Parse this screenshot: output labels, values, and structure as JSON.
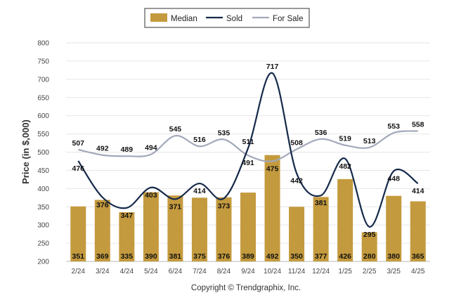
{
  "chart_data": {
    "type": "bar",
    "categories": [
      "2/24",
      "3/24",
      "4/24",
      "5/24",
      "6/24",
      "7/24",
      "8/24",
      "9/24",
      "10/24",
      "11/24",
      "12/24",
      "1/25",
      "2/25",
      "3/25",
      "4/25"
    ],
    "series": [
      {
        "name": "Median",
        "type": "bar",
        "color": "#c49a3e",
        "values": [
          351,
          369,
          335,
          390,
          381,
          375,
          376,
          389,
          492,
          350,
          377,
          426,
          280,
          380,
          365
        ]
      },
      {
        "name": "Sold",
        "type": "line",
        "color": "#15294a",
        "values": [
          476,
          376,
          347,
          403,
          371,
          414,
          373,
          511,
          717,
          442,
          381,
          482,
          295,
          448,
          414
        ]
      },
      {
        "name": "For Sale",
        "type": "line",
        "color": "#a3a9bb",
        "values": [
          507,
          492,
          489,
          494,
          545,
          516,
          535,
          491,
          475,
          508,
          536,
          519,
          513,
          553,
          558
        ]
      }
    ],
    "ylabel": "Price (in $,000)",
    "xlabel": "",
    "ylim": [
      200,
      800
    ],
    "yticks": [
      200,
      250,
      300,
      350,
      400,
      450,
      500,
      550,
      600,
      650,
      700,
      750,
      800
    ],
    "grid": true,
    "legend": "top-center",
    "footer": "Copyright © Trendgraphix, Inc."
  }
}
